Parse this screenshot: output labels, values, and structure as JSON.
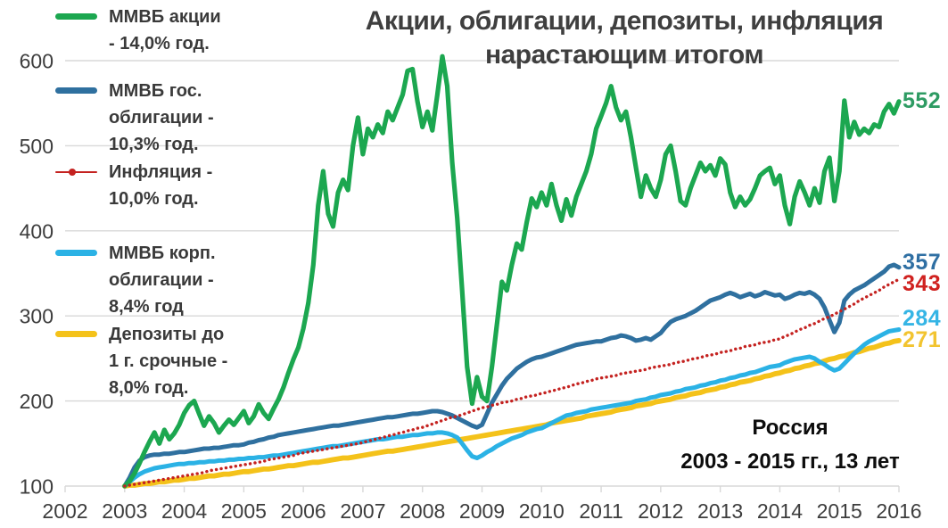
{
  "title": {
    "line1": "Акции, облигации, депозиты, инфляция",
    "line2": "нарастающим итогом"
  },
  "annotation": {
    "line1": "Россия",
    "line2": "2003 - 2015 гг., 13 лет"
  },
  "chart_data": {
    "type": "line",
    "title": "Акции, облигации, депозиты, инфляция нарастающим итогом",
    "x_axis": {
      "range": [
        2002,
        2016
      ],
      "ticks": [
        2002,
        2003,
        2004,
        2005,
        2006,
        2007,
        2008,
        2009,
        2010,
        2011,
        2012,
        2013,
        2014,
        2015,
        2016
      ]
    },
    "y_axis": {
      "range": [
        100,
        600
      ],
      "ticks": [
        100,
        200,
        300,
        400,
        500,
        600
      ]
    },
    "grid_color": "#d8d8d8",
    "axis_label_color": "#3d3d3d",
    "x_start": 2003,
    "x_step": "monthly",
    "draw_order": [
      4,
      3,
      1,
      0,
      2
    ],
    "series": [
      {
        "id": "micex-stocks",
        "name": "ММВБ акции - 14,0% год.",
        "legend_lines": [
          "ММВБ акции",
          "- 14,0% год."
        ],
        "color": "#1CA750",
        "label_color": "#2E9B63",
        "style": "solid",
        "width": 5.2,
        "end_label": "552",
        "values": [
          100,
          106,
          115,
          127,
          140,
          152,
          163,
          150,
          166,
          155,
          162,
          172,
          186,
          195,
          200,
          185,
          171,
          182,
          174,
          163,
          171,
          178,
          172,
          180,
          188,
          174,
          182,
          196,
          186,
          179,
          191,
          202,
          216,
          233,
          249,
          263,
          285,
          315,
          360,
          430,
          470,
          420,
          405,
          445,
          460,
          448,
          500,
          533,
          490,
          520,
          510,
          525,
          515,
          540,
          530,
          545,
          560,
          588,
          590,
          552,
          522,
          540,
          518,
          560,
          605,
          570,
          480,
          415,
          330,
          240,
          197,
          228,
          205,
          200,
          240,
          290,
          340,
          330,
          360,
          385,
          378,
          410,
          438,
          428,
          445,
          430,
          455,
          430,
          412,
          437,
          418,
          440,
          455,
          470,
          490,
          520,
          535,
          550,
          570,
          545,
          530,
          540,
          510,
          475,
          440,
          465,
          450,
          440,
          460,
          490,
          500,
          470,
          435,
          430,
          450,
          465,
          480,
          470,
          477,
          465,
          485,
          478,
          445,
          428,
          440,
          430,
          437,
          450,
          465,
          470,
          474,
          455,
          465,
          430,
          408,
          440,
          458,
          445,
          430,
          450,
          433,
          470,
          486,
          435,
          470,
          553,
          510,
          528,
          513,
          520,
          515,
          525,
          522,
          540,
          549,
          538,
          552
        ]
      },
      {
        "id": "micex-gov-bonds",
        "name": "ММВБ гос. облигации - 10,3% год.",
        "legend_lines": [
          "ММВБ гос.",
          "облигации -",
          "10,3% год."
        ],
        "color": "#2F709F",
        "label_color": "#2F6FA3",
        "style": "solid",
        "width": 5,
        "end_label": "357",
        "values": [
          100,
          110,
          122,
          130,
          134,
          136,
          137,
          137,
          138,
          138,
          139,
          140,
          140,
          141,
          142,
          143,
          144,
          144,
          145,
          145,
          146,
          147,
          148,
          148,
          149,
          151,
          152,
          154,
          155,
          157,
          158,
          160,
          161,
          162,
          163,
          164,
          165,
          166,
          167,
          168,
          169,
          170,
          171,
          171,
          172,
          173,
          174,
          175,
          176,
          177,
          178,
          179,
          180,
          181,
          181,
          182,
          183,
          184,
          185,
          185,
          186,
          187,
          188,
          188,
          187,
          185,
          183,
          180,
          177,
          174,
          171,
          169,
          172,
          185,
          198,
          208,
          218,
          226,
          232,
          238,
          242,
          246,
          249,
          251,
          252,
          254,
          256,
          258,
          260,
          262,
          264,
          266,
          267,
          268,
          269,
          270,
          270,
          272,
          274,
          275,
          277,
          276,
          274,
          271,
          272,
          274,
          272,
          276,
          280,
          287,
          293,
          296,
          298,
          300,
          303,
          306,
          310,
          314,
          318,
          320,
          322,
          325,
          327,
          325,
          322,
          324,
          326,
          323,
          325,
          328,
          326,
          324,
          325,
          320,
          322,
          325,
          327,
          326,
          328,
          325,
          320,
          310,
          295,
          281,
          292,
          318,
          325,
          330,
          333,
          336,
          340,
          344,
          348,
          352,
          358,
          360,
          357
        ]
      },
      {
        "id": "inflation",
        "name": "Инфляция - 10,0% год.",
        "legend_lines": [
          "Инфляция -",
          "10,0% год."
        ],
        "color": "#C42220",
        "label_color": "#D02220",
        "style": "dotted",
        "width": 3.4,
        "end_label": "343",
        "values": [
          100,
          101,
          102,
          103,
          104,
          105,
          106,
          107,
          108,
          109,
          110,
          111,
          112,
          113,
          114,
          115,
          116,
          118,
          119,
          120,
          121,
          122,
          123,
          124,
          125,
          126,
          127,
          128,
          129,
          131,
          132,
          133,
          134,
          135,
          136,
          138,
          139,
          140,
          141,
          142,
          143,
          144,
          145,
          146,
          147,
          148,
          149,
          150,
          151,
          153,
          154,
          156,
          157,
          159,
          160,
          162,
          163,
          165,
          166,
          168,
          169,
          171,
          173,
          175,
          177,
          179,
          181,
          182,
          184,
          186,
          188,
          190,
          192,
          193,
          195,
          196,
          198,
          199,
          200,
          202,
          203,
          205,
          206,
          207,
          209,
          210,
          212,
          213,
          215,
          216,
          218,
          220,
          221,
          223,
          224,
          226,
          227,
          228,
          229,
          230,
          232,
          233,
          234,
          235,
          236,
          237,
          239,
          240,
          241,
          242,
          243,
          245,
          246,
          247,
          249,
          250,
          251,
          253,
          254,
          255,
          257,
          258,
          259,
          261,
          262,
          264,
          265,
          266,
          268,
          269,
          270,
          272,
          273,
          276,
          278,
          281,
          284,
          286,
          289,
          291,
          294,
          297,
          299,
          302,
          305,
          308,
          311,
          314,
          318,
          321,
          324,
          327,
          330,
          334,
          337,
          340,
          343
        ]
      },
      {
        "id": "micex-corp-bonds",
        "name": "ММВБ корп. облигации - 8,4% год",
        "legend_lines": [
          "ММВБ корп.",
          "облигации -",
          "8,4% год"
        ],
        "color": "#2BB2E5",
        "label_color": "#35B5E5",
        "style": "solid",
        "width": 5,
        "end_label": "284",
        "values": [
          100,
          105,
          110,
          114,
          117,
          119,
          121,
          122,
          123,
          124,
          125,
          126,
          126,
          127,
          127,
          128,
          128,
          129,
          129,
          130,
          130,
          131,
          131,
          132,
          132,
          133,
          133,
          134,
          134,
          135,
          136,
          136,
          137,
          138,
          139,
          140,
          141,
          142,
          143,
          144,
          145,
          146,
          147,
          147,
          148,
          149,
          150,
          151,
          152,
          153,
          154,
          155,
          155,
          156,
          157,
          158,
          158,
          159,
          160,
          160,
          161,
          162,
          162,
          163,
          163,
          162,
          160,
          157,
          150,
          142,
          135,
          133,
          136,
          140,
          143,
          147,
          150,
          153,
          156,
          158,
          160,
          163,
          165,
          167,
          168,
          171,
          174,
          177,
          180,
          183,
          184,
          186,
          187,
          188,
          190,
          191,
          192,
          193,
          194,
          195,
          196,
          197,
          198,
          200,
          201,
          202,
          204,
          205,
          207,
          208,
          209,
          211,
          212,
          214,
          215,
          216,
          218,
          219,
          221,
          222,
          224,
          225,
          227,
          228,
          230,
          231,
          233,
          234,
          236,
          238,
          240,
          241,
          242,
          245,
          247,
          249,
          250,
          251,
          252,
          250,
          246,
          243,
          239,
          236,
          238,
          244,
          250,
          256,
          261,
          266,
          270,
          273,
          276,
          279,
          282,
          283,
          284
        ]
      },
      {
        "id": "deposits",
        "name": "Депозиты до 1 г. срочные - 8,0% год.",
        "legend_lines": [
          "Депозиты до",
          "1 г. срочные -",
          "8,0% год."
        ],
        "color": "#F4C21A",
        "label_color": "#F2C430",
        "style": "solid",
        "width": 5.8,
        "end_label": "271",
        "values": [
          100,
          101,
          101,
          102,
          103,
          103,
          104,
          105,
          105,
          106,
          107,
          107,
          108,
          109,
          109,
          110,
          111,
          112,
          112,
          113,
          114,
          114,
          115,
          116,
          117,
          117,
          118,
          119,
          120,
          120,
          121,
          122,
          123,
          124,
          124,
          125,
          126,
          127,
          128,
          128,
          129,
          130,
          131,
          132,
          133,
          133,
          134,
          135,
          136,
          137,
          138,
          139,
          140,
          141,
          141,
          142,
          143,
          144,
          145,
          146,
          147,
          148,
          149,
          150,
          151,
          152,
          153,
          154,
          155,
          156,
          157,
          158,
          159,
          160,
          161,
          162,
          163,
          164,
          165,
          166,
          167,
          168,
          169,
          170,
          171,
          172,
          174,
          175,
          176,
          177,
          178,
          179,
          180,
          182,
          183,
          184,
          185,
          186,
          187,
          189,
          190,
          191,
          192,
          194,
          195,
          196,
          197,
          199,
          200,
          201,
          202,
          204,
          205,
          206,
          208,
          209,
          210,
          212,
          213,
          214,
          216,
          217,
          219,
          220,
          222,
          223,
          224,
          226,
          227,
          229,
          230,
          232,
          233,
          235,
          236,
          238,
          239,
          241,
          242,
          244,
          245,
          247,
          249,
          250,
          252,
          253,
          255,
          257,
          258,
          260,
          262,
          263,
          265,
          267,
          268,
          270,
          271
        ]
      }
    ]
  }
}
